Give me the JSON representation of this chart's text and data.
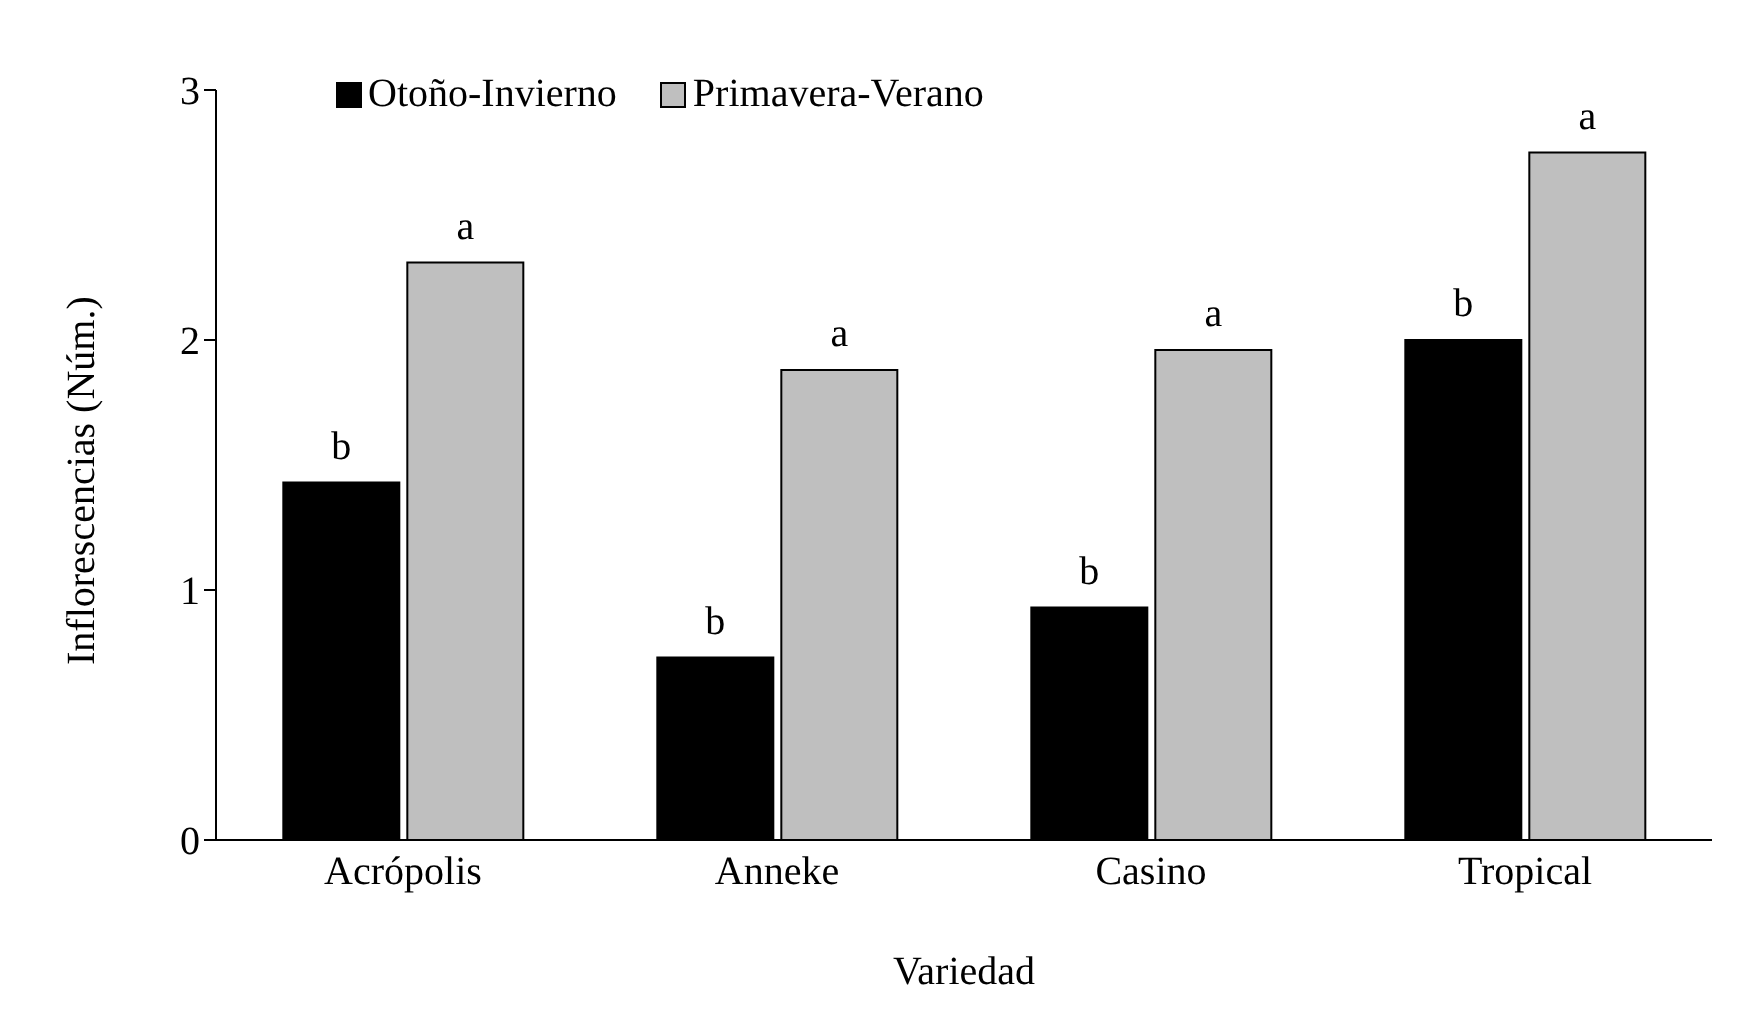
{
  "chart_data": {
    "type": "bar",
    "xlabel": "Variedad",
    "ylabel": "Inflorescencias (Núm.)",
    "categories": [
      "Acrópolis",
      "Anneke",
      "Casino",
      "Tropical"
    ],
    "series": [
      {
        "name": "Otoño-Invierno",
        "color": "#000000",
        "values": [
          1.43,
          0.73,
          0.93,
          2.0
        ],
        "value_labels": [
          "b",
          "b",
          "b",
          "b"
        ]
      },
      {
        "name": "Primavera-Verano",
        "color": "#bfbfbf",
        "values": [
          2.31,
          1.88,
          1.96,
          2.75
        ],
        "value_labels": [
          "a",
          "a",
          "a",
          "a"
        ]
      }
    ],
    "ylim": [
      0,
      3
    ],
    "yticks": [
      0,
      1,
      2,
      3
    ],
    "grid": false,
    "legend": "top left"
  }
}
